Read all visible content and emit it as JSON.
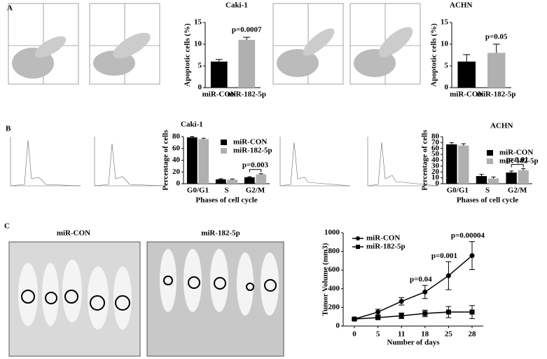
{
  "panel_labels": [
    "A",
    "B",
    "C"
  ],
  "photo_labels": [
    "miR-CON",
    "miR-182-5p"
  ],
  "chart_data": [
    {
      "type": "bar",
      "title": "Caki-1",
      "ylabel": "Apoptotic cells (%)",
      "categories": [
        "miR-CON",
        "miR-182-5p"
      ],
      "values": [
        6,
        11
      ],
      "errors": [
        0.5,
        0.6
      ],
      "colors": [
        "#000000",
        "#b0b0b0"
      ],
      "ylim": [
        0,
        15
      ],
      "yticks": [
        0,
        5,
        10,
        15
      ],
      "annotation": "p=0.0007"
    },
    {
      "type": "bar",
      "title": "ACHN",
      "ylabel": "Apoptotic cells (%)",
      "categories": [
        "miR-CON",
        "miR-182-5p"
      ],
      "values": [
        6,
        8
      ],
      "errors": [
        1.6,
        2
      ],
      "colors": [
        "#000000",
        "#b0b0b0"
      ],
      "ylim": [
        0,
        15
      ],
      "yticks": [
        0,
        5,
        10,
        15
      ],
      "annotation": "p=0.05"
    },
    {
      "type": "bar",
      "title": "Caki-1",
      "ylabel": "Percentage of cells",
      "xlabel": "Phases of cell cycle",
      "categories": [
        "G0/G1",
        "S",
        "G2/M"
      ],
      "series": [
        {
          "name": "miR-CON",
          "color": "#000000",
          "values": [
            79,
            7.5,
            11
          ],
          "errors": [
            1.5,
            1,
            1
          ]
        },
        {
          "name": "miR-182-5p",
          "color": "#b0b0b0",
          "values": [
            76,
            7,
            16
          ],
          "errors": [
            1.5,
            1,
            1
          ]
        }
      ],
      "ylim": [
        0,
        80
      ],
      "yticks": [
        0,
        20,
        40,
        60,
        80
      ],
      "annotation": "p=0.003"
    },
    {
      "type": "bar",
      "title": "ACHN",
      "ylabel": "Percentage of cells",
      "xlabel": "Phases of cell cycle",
      "categories": [
        "G0/G1",
        "S",
        "G2/M"
      ],
      "series": [
        {
          "name": "miR-CON",
          "color": "#000000",
          "values": [
            67,
            13,
            19
          ],
          "errors": [
            3,
            3,
            2.5
          ]
        },
        {
          "name": "miR-182-5p",
          "color": "#b0b0b0",
          "values": [
            65,
            9,
            23
          ],
          "errors": [
            3,
            2.5,
            2.5
          ]
        }
      ],
      "ylim": [
        0,
        80
      ],
      "yticks": [
        0,
        10,
        20,
        30,
        40,
        50,
        60,
        70,
        80
      ],
      "annotation": "p=0.01"
    },
    {
      "type": "line",
      "ylabel": "Tumor Volume (mm3)",
      "xlabel": "Number of days",
      "categories": [
        "0",
        "5",
        "11",
        "18",
        "25",
        "28"
      ],
      "series": [
        {
          "name": "miR-CON",
          "color": "#000000",
          "marker": "circle",
          "values": [
            75,
            150,
            265,
            365,
            540,
            755
          ],
          "errors": [
            10,
            30,
            40,
            70,
            150,
            150
          ]
        },
        {
          "name": "miR-182-5p",
          "color": "#000000",
          "marker": "square",
          "values": [
            75,
            90,
            110,
            135,
            150,
            150
          ],
          "errors": [
            10,
            15,
            30,
            35,
            60,
            70
          ]
        }
      ],
      "ylim": [
        0,
        1000
      ],
      "yticks": [
        0,
        200,
        400,
        600,
        800,
        1000
      ],
      "annotations": [
        {
          "text": "p=0.04",
          "x": "18"
        },
        {
          "text": "p=0.001",
          "x": "25"
        },
        {
          "text": "p=0.00004",
          "x": "28"
        }
      ]
    }
  ]
}
